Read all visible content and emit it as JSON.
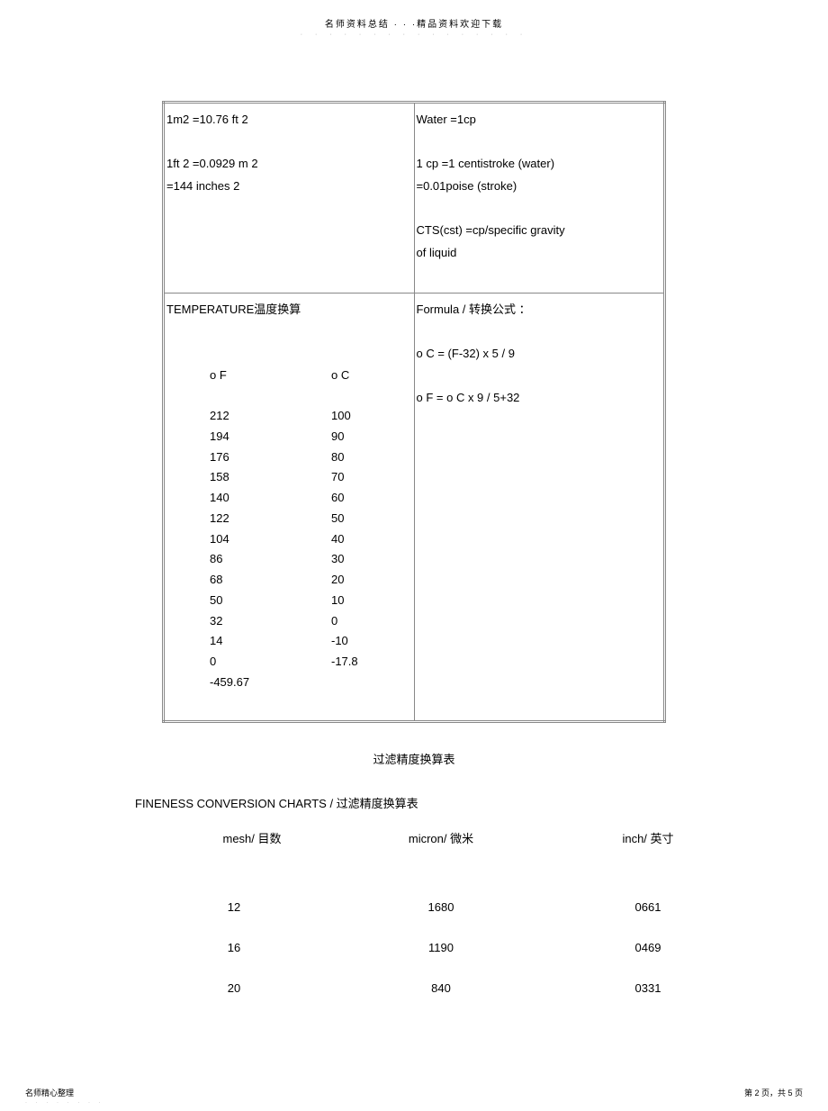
{
  "header": {
    "title": "名师资料总结 · · ·精品资料欢迎下载",
    "subdots": "· · · · · · · · · · · · · · · ·"
  },
  "grid": {
    "r1c1": {
      "l1": "1m2  =10.76 ft 2",
      "l2": "",
      "l3": "1ft 2 =0.0929 m 2",
      "l4": "  =144 inches 2"
    },
    "r1c2": {
      "l1": "Water =1cp",
      "l2": "",
      "l3": "1 cp =1 centistroke (water)",
      "l4": "  =0.01poise (stroke)",
      "l5": "",
      "l6": "CTS(cst) =cp/specific gravity",
      "l7": "of        liquid"
    },
    "r2c1": {
      "heading": "TEMPERATURE温度换算",
      "colhead_f": "o F",
      "colhead_c": "o C",
      "rows": [
        {
          "f": "212",
          "c": "100"
        },
        {
          "f": "194",
          "c": "90"
        },
        {
          "f": "176",
          "c": "80"
        },
        {
          "f": "158",
          "c": "70"
        },
        {
          "f": "140",
          "c": "60"
        },
        {
          "f": "122",
          "c": "50"
        },
        {
          "f": "104",
          "c": "40"
        },
        {
          "f": "86",
          "c": "30"
        },
        {
          "f": "68",
          "c": "20"
        },
        {
          "f": "50",
          "c": "10"
        },
        {
          "f": "32",
          "c": "0"
        },
        {
          "f": "14",
          "c": "-10"
        },
        {
          "f": "0",
          "c": "-17.8"
        },
        {
          "f": "-459.67",
          "c": ""
        }
      ]
    },
    "r2c2": {
      "l1": "Formula /     转换公式  ：",
      "l2": "",
      "l3": "o C = (F-32) x 5 / 9",
      "l4": "",
      "l5": "o F = o C x 9 / 5+32"
    }
  },
  "section_title": "过滤精度换算表",
  "fineness": {
    "title": "FINENESS CONVERSION CHARTS /      过滤精度换算表",
    "headers": {
      "mesh": "mesh/ 目数",
      "micron": "micron/  微米",
      "inch": "inch/  英寸"
    },
    "rows": [
      {
        "mesh": "12",
        "micron": "1680",
        "inch": "0661"
      },
      {
        "mesh": "16",
        "micron": "1190",
        "inch": "0469"
      },
      {
        "mesh": "20",
        "micron": "840",
        "inch": "0331"
      }
    ]
  },
  "footer": {
    "left": "名师精心整理",
    "leftsub": "· · · · · · · ·",
    "right": "第 2 页，共 5 页"
  }
}
